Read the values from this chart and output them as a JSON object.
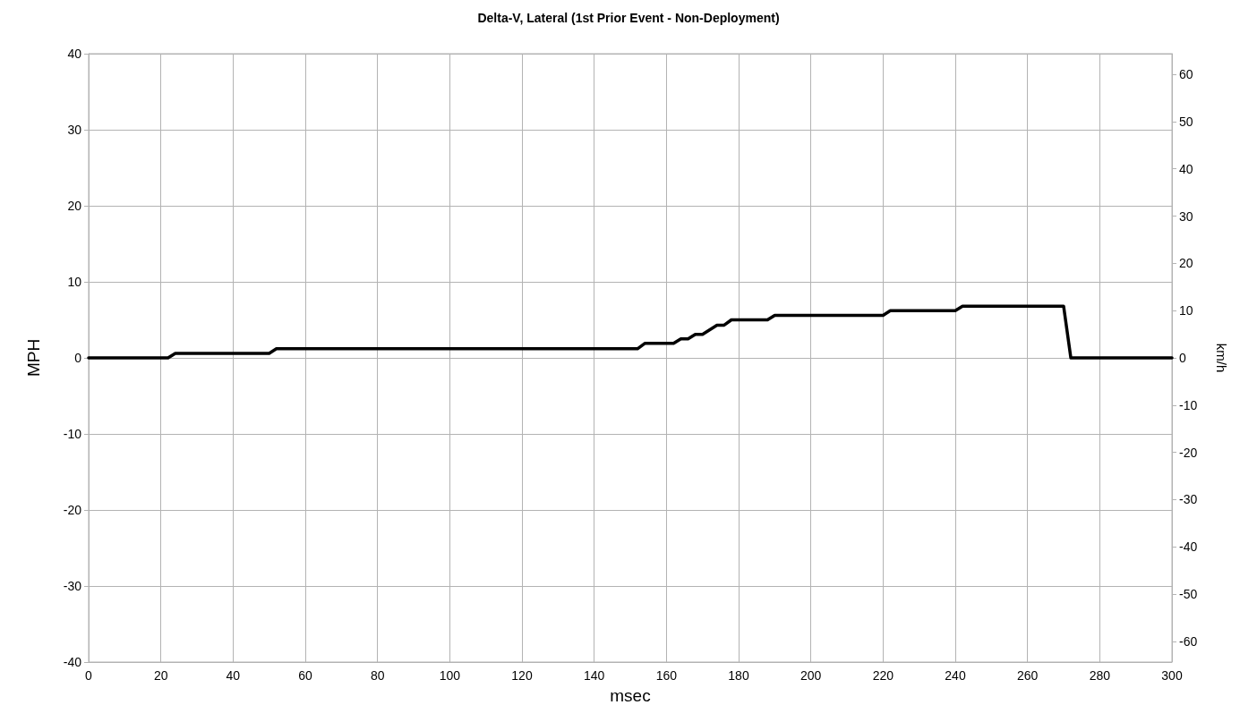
{
  "chart_data": {
    "type": "line",
    "title": "Delta-V, Lateral (1st Prior Event - Non-Deployment)",
    "xlabel": "msec",
    "ylabel": "MPH",
    "y2label": "km/h",
    "x": [
      0,
      22,
      24,
      50,
      52,
      152,
      154,
      162,
      164,
      166,
      168,
      170,
      174,
      176,
      178,
      188,
      190,
      220,
      222,
      240,
      242,
      270,
      272,
      300
    ],
    "series": [
      {
        "color": "#000000",
        "values": [
          0,
          0,
          0.6,
          0.6,
          1.2,
          1.2,
          1.9,
          1.9,
          2.5,
          2.5,
          3.1,
          3.1,
          4.3,
          4.3,
          5.0,
          5.0,
          5.6,
          5.6,
          6.2,
          6.2,
          6.8,
          6.8,
          0,
          0
        ]
      }
    ],
    "xlim": [
      0,
      300
    ],
    "xticks": [
      0,
      20,
      40,
      60,
      80,
      100,
      120,
      140,
      160,
      180,
      200,
      220,
      240,
      260,
      280,
      300
    ],
    "ylim": [
      -40,
      40
    ],
    "yticks": [
      -40,
      -30,
      -20,
      -10,
      0,
      10,
      20,
      30,
      40
    ],
    "y2lim": [
      -64.37,
      64.37
    ],
    "y2ticks": [
      -60,
      -50,
      -40,
      -30,
      -20,
      -10,
      0,
      10,
      20,
      30,
      40,
      50,
      60
    ],
    "grid": true,
    "marker": "none",
    "line_style": "solid"
  }
}
